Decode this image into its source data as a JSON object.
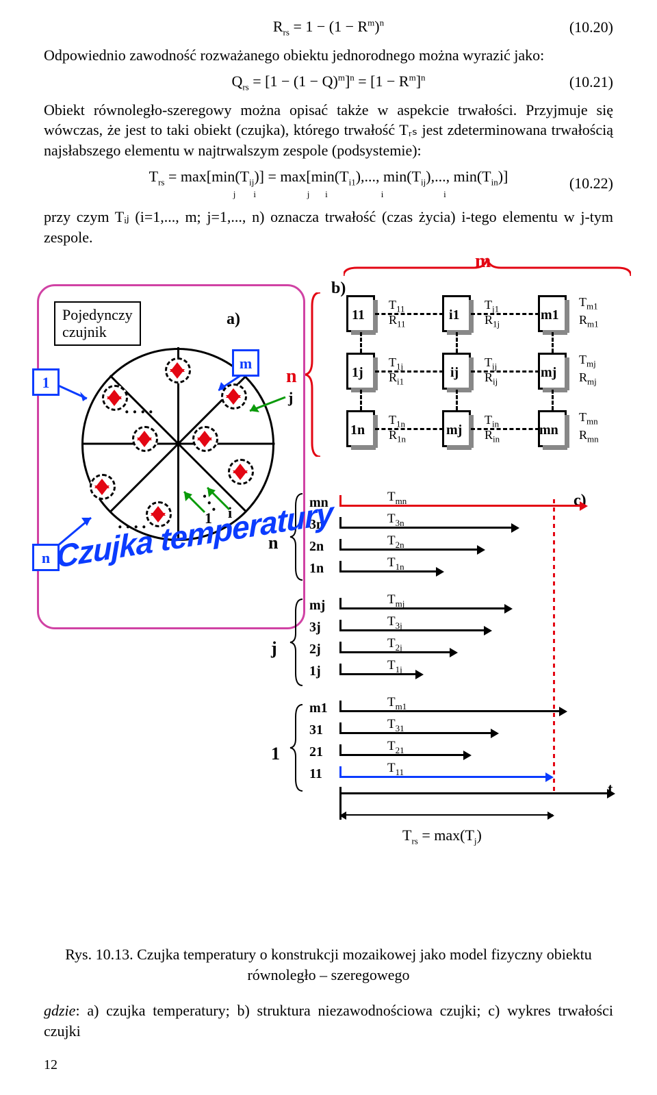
{
  "eq20": {
    "body": "Rₙₛ = 1 − (1 − R",
    "sup": "m",
    "tail": ")",
    "supn": "n",
    "num": "(10.20)"
  },
  "para1": "Odpowiednio zawodność rozważanego obiektu jednorodnego można wyrazić jako:",
  "eq21": {
    "body": "Qₙₛ = [1 − (1 − Q)",
    "m": "m",
    "mid": "]",
    "n": "n",
    "eq2": " = [1 − R",
    "m2": "m",
    "tail2": "]",
    "n2": "n",
    "num": "(10.21)"
  },
  "para2": "Obiekt równoległo-szeregowy można opisać także w aspekcie trwałości. Przyjmuje się wówczas, że jest to taki obiekt (czujka), którego trwałość Tᵣₛ jest zdeterminowana trwałością najsłabszego elementu w najtrwalszym zespole (podsystemie):",
  "eq22": {
    "body": "Tᵣₛ = max[min(Tᵢⱼ)] = max[min(Tᵢ1),..., min(Tᵢⱼ),..., min(Tᵢₙ)]",
    "sub": "        j      i                 j      i                i                  i",
    "num": "(10.22)"
  },
  "para3": "przy czym Tᵢⱼ (i=1,..., m; j=1,..., n) oznacza trwałość (czas życia) i-tego elementu w j-tym zespole.",
  "m_label": "m",
  "sensor": {
    "title_l1": "Pojedynczy",
    "title_l2": "czujnik",
    "a": "a)",
    "chip1": "1",
    "chipm": "m",
    "chipn": "n",
    "j": "j",
    "i": "i",
    "one": "1",
    "arc": "Czujka temperatury"
  },
  "struct": {
    "b": "b)",
    "n": "n",
    "rows": [
      {
        "col1": "11",
        "lblT1": "T",
        "sub1": "11",
        "lblR1": "R",
        "subR1": "11",
        "col2": "i1",
        "lblT2": "T",
        "sub2": "j1",
        "lblR2": "R",
        "subR2": "1j",
        "col3": "m1",
        "lblT3": "T",
        "sub3": "m1",
        "lblR3": "R",
        "subR3": "m1"
      },
      {
        "col1": "1j",
        "lblT1": "T",
        "sub1": "1j",
        "lblR1": "R",
        "subR1": "i1",
        "col2": "ij",
        "lblT2": "T",
        "sub2": "ij",
        "lblR2": "R",
        "subR2": "ij",
        "col3": "mj",
        "lblT3": "T",
        "sub3": "mj",
        "lblR3": "R",
        "subR3": "mj"
      },
      {
        "col1": "1n",
        "lblT1": "T",
        "sub1": "1n",
        "lblR1": "R",
        "subR1": "1n",
        "col2": "mj",
        "lblT2": "T",
        "sub2": "in",
        "lblR2": "R",
        "subR2": "in",
        "col3": "mn",
        "lblT3": "T",
        "sub3": "mn",
        "lblR3": "R",
        "subR3": "mn"
      }
    ]
  },
  "timelines": {
    "c": "c)",
    "t": "t",
    "groups": [
      {
        "key": "n",
        "rows": [
          "mn",
          "3n",
          "2n",
          "1n"
        ],
        "T": [
          "T",
          "T",
          "T",
          "T"
        ],
        "Tsub": [
          "mn",
          "3n",
          "2n",
          "1n"
        ],
        "color": "red",
        "dash": true
      },
      {
        "key": "j",
        "rows": [
          "mj",
          "3j",
          "2j",
          "1j"
        ],
        "T": [
          "T",
          "T",
          "T",
          "T"
        ],
        "Tsub": [
          "mj",
          "3j",
          "2j",
          "1j"
        ],
        "color": "black"
      },
      {
        "key": "1",
        "rows": [
          "m1",
          "31",
          "21",
          "11"
        ],
        "T": [
          "T",
          "T",
          "T",
          "T"
        ],
        "Tsub": [
          "m1",
          "31",
          "21",
          "11"
        ],
        "color": "blue"
      }
    ],
    "trs": "Tᵣₛ = max(Tⱼ)"
  },
  "caption_main": "Rys. 10.13. Czujka temperatury o konstrukcji mozaikowej jako model fizyczny obiektu równoległo – szeregowego",
  "caption_sub_pre": "gdzie",
  "caption_sub": ": a) czujka temperatury; b) struktura niezawodnościowa czujki; c) wykres trwałości czujki",
  "pagenum": "12"
}
